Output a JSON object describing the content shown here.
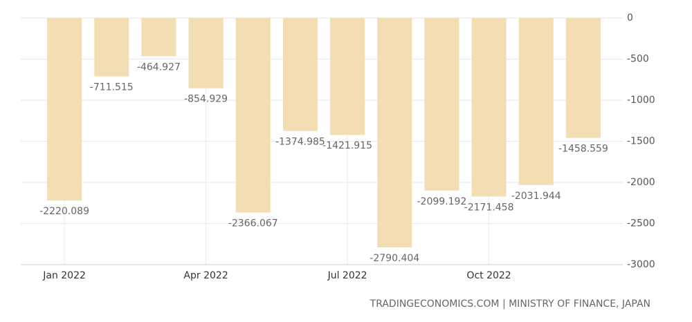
{
  "chart_data": {
    "type": "bar",
    "categories": [
      "Jan 2022",
      null,
      null,
      "Apr 2022",
      null,
      null,
      "Jul 2022",
      null,
      null,
      "Oct 2022",
      null,
      null
    ],
    "values": [
      -2220.089,
      -711.515,
      -464.927,
      -854.929,
      -2366.067,
      -1374.985,
      -1421.915,
      -2790.404,
      -2099.192,
      -2171.458,
      -2031.944,
      -1458.559
    ],
    "color": "#f3ddb3",
    "ylim": [
      -3000,
      0
    ],
    "yticks": [
      0,
      -500,
      -1000,
      -1500,
      -2000,
      -2500,
      -3000
    ],
    "grid": true,
    "source": "TRADINGECONOMICS.COM | MINISTRY OF FINANCE, JAPAN"
  }
}
